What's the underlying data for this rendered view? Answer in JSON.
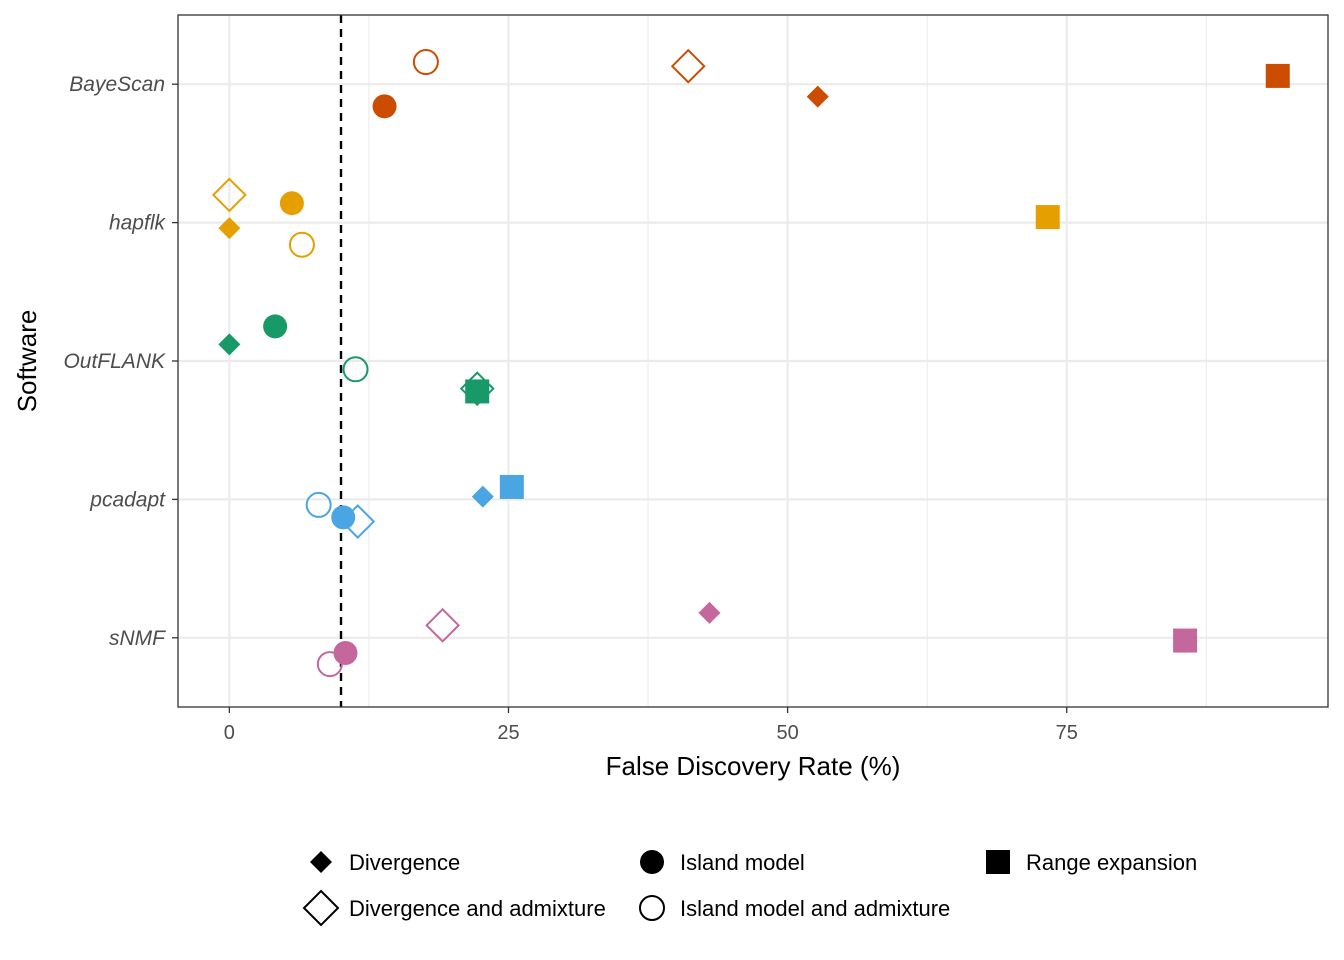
{
  "chart_data": {
    "type": "scatter",
    "xlabel": "False Discovery Rate (%)",
    "ylabel": "Software",
    "xlim": [
      -4.6,
      98.4
    ],
    "x_ticks": [
      0,
      25,
      50,
      75
    ],
    "x_tick_labels": [
      "0",
      "25",
      "50",
      "75"
    ],
    "categories": [
      "BayeScan",
      "hapflk",
      "OutFLANK",
      "pcadapt",
      "sNMF"
    ],
    "reference_line": {
      "x": 10,
      "style": "dashed",
      "color": "#000000"
    },
    "grid": true,
    "legend_position": "bottom",
    "colors": {
      "BayeScan": "#cc4c02",
      "hapflk": "#e69f00",
      "OutFLANK": "#189a68",
      "pcadapt": "#4aa6e2",
      "sNMF": "#c4679d"
    },
    "legend": [
      {
        "label": "Divergence",
        "shape": "diamond",
        "filled": true
      },
      {
        "label": "Island model",
        "shape": "circle",
        "filled": true
      },
      {
        "label": "Range expansion",
        "shape": "square",
        "filled": true
      },
      {
        "label": "Divergence and admixture",
        "shape": "diamond",
        "filled": false
      },
      {
        "label": "Island model and admixture",
        "shape": "circle",
        "filled": false
      }
    ],
    "points": [
      {
        "software": "BayeScan",
        "scenario": "Divergence",
        "x": 52.7,
        "jitter": -0.09
      },
      {
        "software": "BayeScan",
        "scenario": "Island model",
        "x": 13.9,
        "jitter": -0.16
      },
      {
        "software": "BayeScan",
        "scenario": "Range expansion",
        "x": 93.9,
        "jitter": 0.06
      },
      {
        "software": "BayeScan",
        "scenario": "Divergence and admixture",
        "x": 41.1,
        "jitter": 0.13
      },
      {
        "software": "BayeScan",
        "scenario": "Island model and admixture",
        "x": 17.6,
        "jitter": 0.16
      },
      {
        "software": "hapflk",
        "scenario": "Divergence",
        "x": 0.0,
        "jitter": -0.04
      },
      {
        "software": "hapflk",
        "scenario": "Island model",
        "x": 5.6,
        "jitter": 0.14
      },
      {
        "software": "hapflk",
        "scenario": "Range expansion",
        "x": 73.3,
        "jitter": 0.04
      },
      {
        "software": "hapflk",
        "scenario": "Divergence and admixture",
        "x": 0.0,
        "jitter": 0.2
      },
      {
        "software": "hapflk",
        "scenario": "Island model and admixture",
        "x": 6.5,
        "jitter": -0.16
      },
      {
        "software": "OutFLANK",
        "scenario": "Divergence",
        "x": 0.0,
        "jitter": 0.12
      },
      {
        "software": "OutFLANK",
        "scenario": "Island model",
        "x": 4.1,
        "jitter": 0.25
      },
      {
        "software": "OutFLANK",
        "scenario": "Range expansion",
        "x": 22.2,
        "jitter": -0.22
      },
      {
        "software": "OutFLANK",
        "scenario": "Divergence and admixture",
        "x": 22.2,
        "jitter": -0.2
      },
      {
        "software": "OutFLANK",
        "scenario": "Island model and admixture",
        "x": 11.3,
        "jitter": -0.06
      },
      {
        "software": "pcadapt",
        "scenario": "Divergence",
        "x": 22.7,
        "jitter": 0.02
      },
      {
        "software": "pcadapt",
        "scenario": "Island model",
        "x": 10.2,
        "jitter": -0.13
      },
      {
        "software": "pcadapt",
        "scenario": "Range expansion",
        "x": 25.3,
        "jitter": 0.09
      },
      {
        "software": "pcadapt",
        "scenario": "Divergence and admixture",
        "x": 11.5,
        "jitter": -0.16
      },
      {
        "software": "pcadapt",
        "scenario": "Island model and admixture",
        "x": 8.0,
        "jitter": -0.04
      },
      {
        "software": "sNMF",
        "scenario": "Divergence",
        "x": 43.0,
        "jitter": 0.18
      },
      {
        "software": "sNMF",
        "scenario": "Island model",
        "x": 10.4,
        "jitter": -0.11
      },
      {
        "software": "sNMF",
        "scenario": "Range expansion",
        "x": 85.6,
        "jitter": -0.02
      },
      {
        "software": "sNMF",
        "scenario": "Divergence and admixture",
        "x": 19.1,
        "jitter": 0.09
      },
      {
        "software": "sNMF",
        "scenario": "Island model and admixture",
        "x": 9.0,
        "jitter": -0.19
      }
    ]
  }
}
